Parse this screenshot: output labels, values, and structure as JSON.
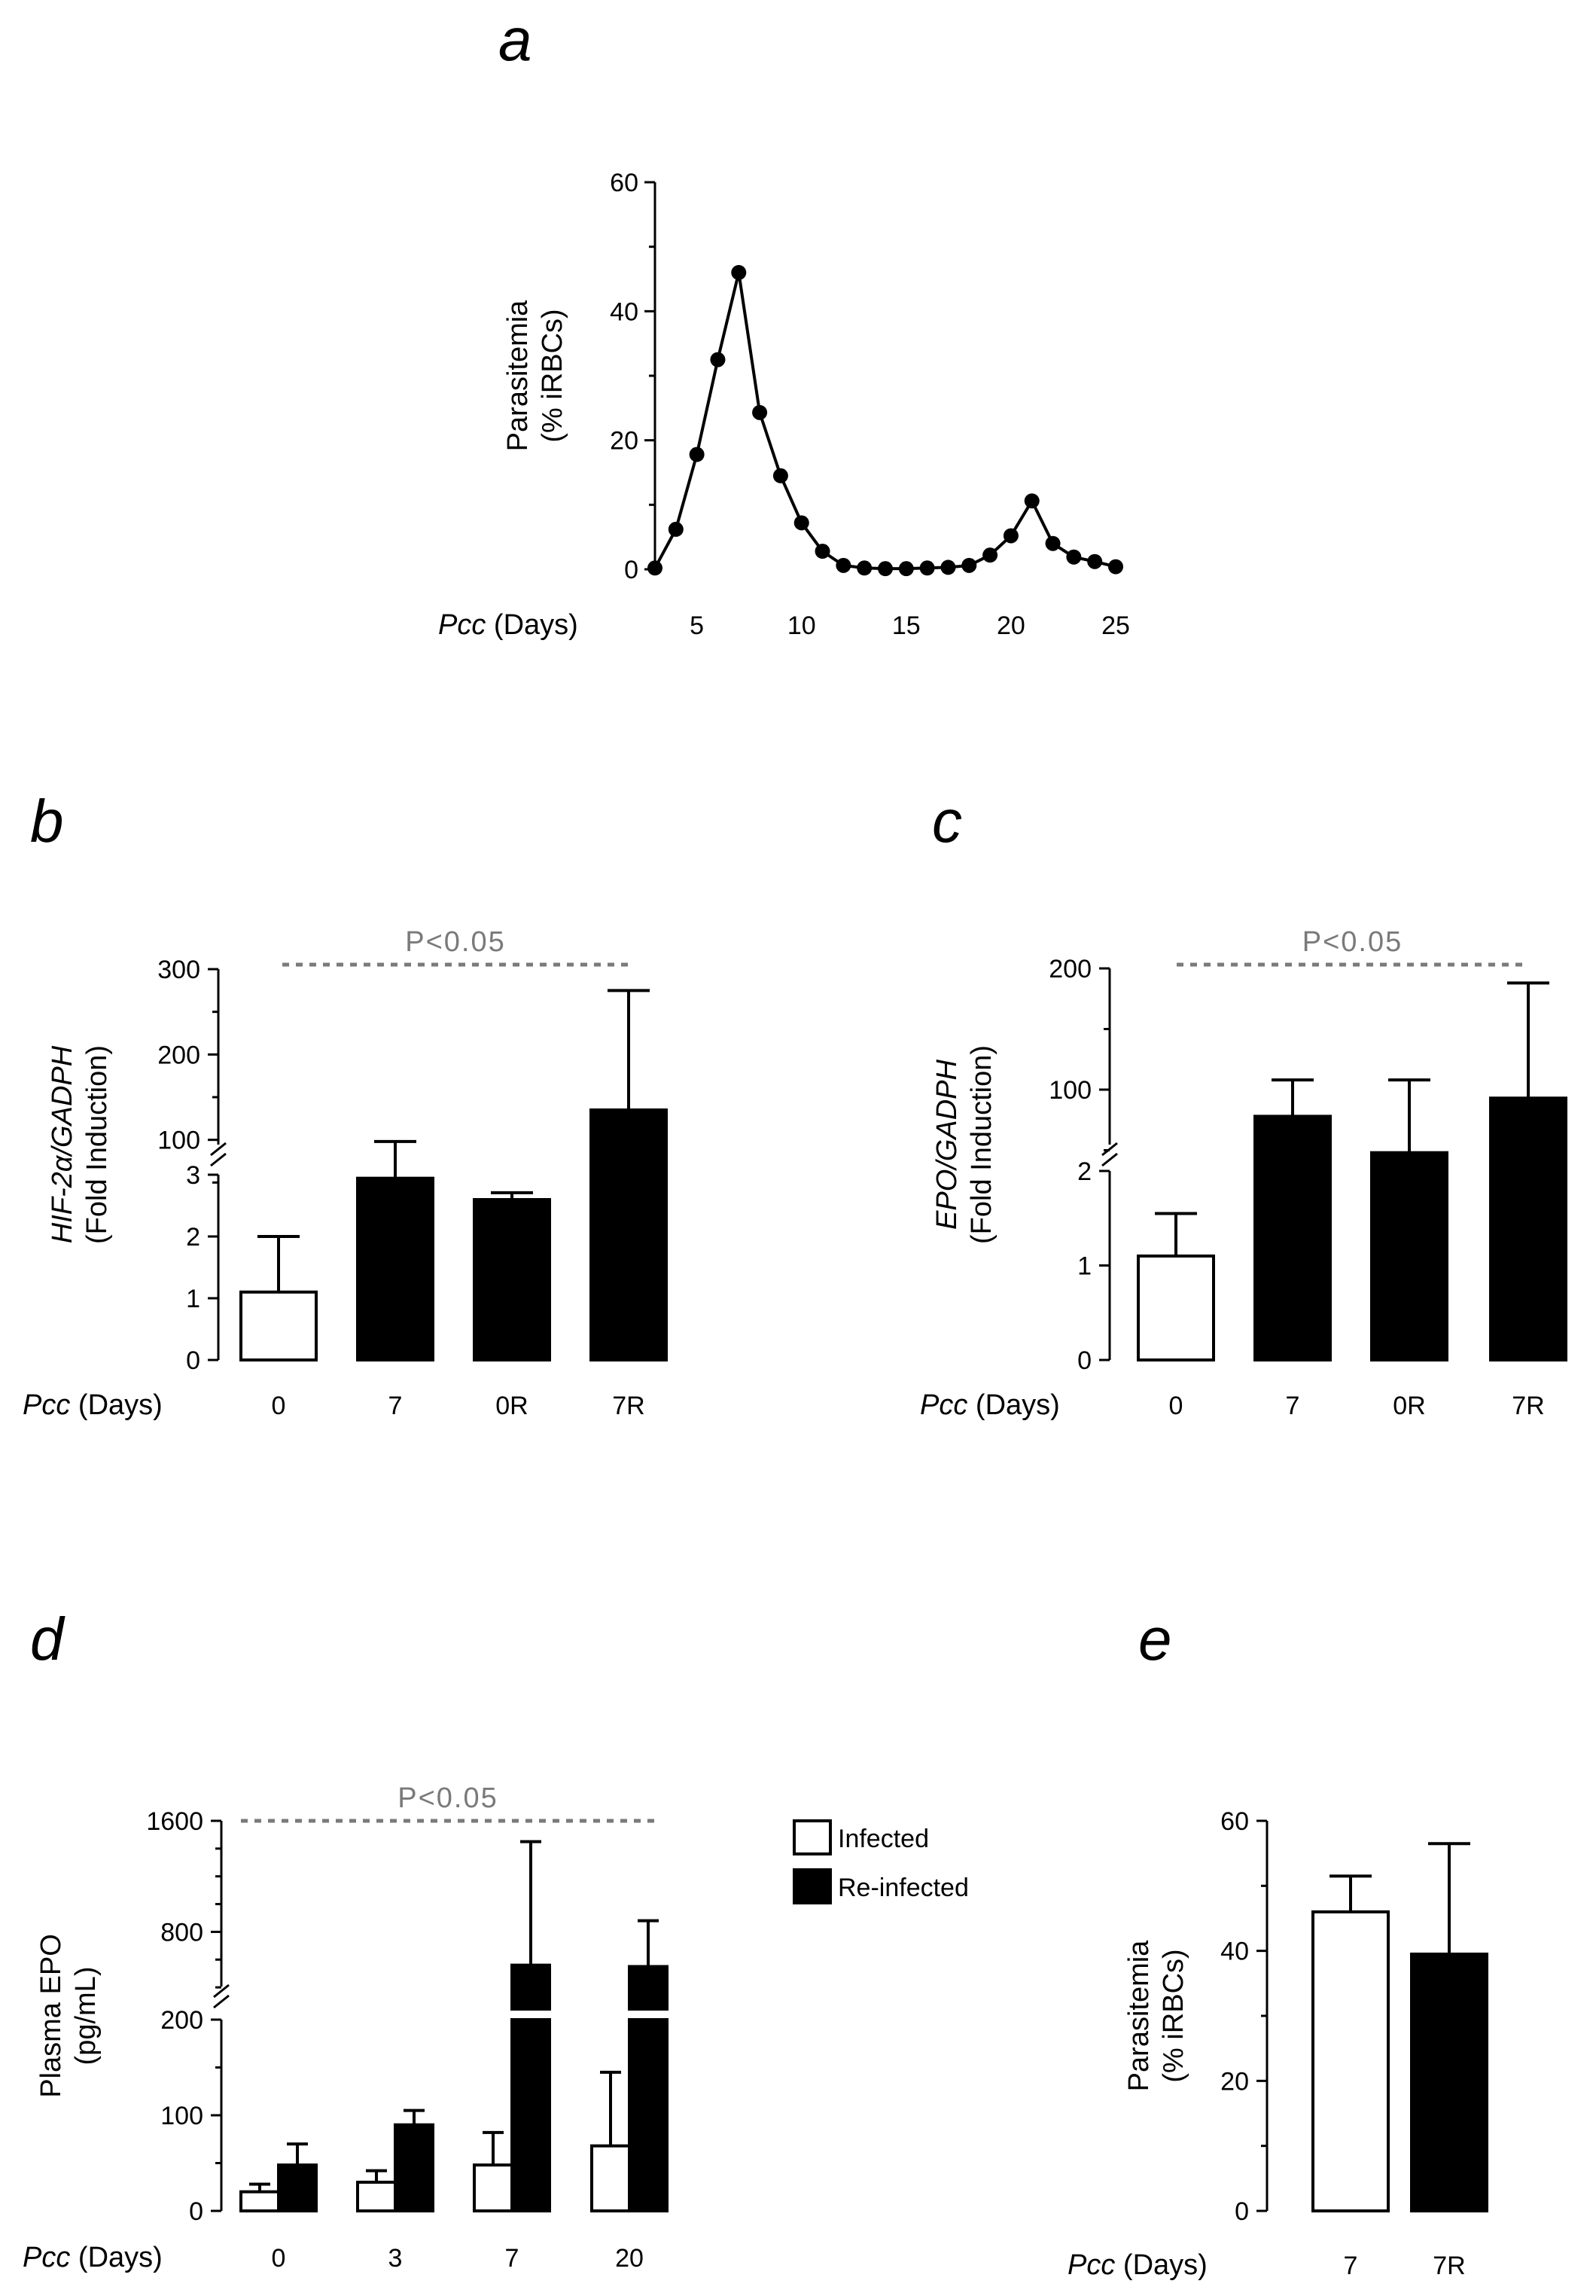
{
  "panels": {
    "a": {
      "letter": "a"
    },
    "b": {
      "letter": "b"
    },
    "c": {
      "letter": "c"
    },
    "d": {
      "letter": "d"
    },
    "e": {
      "letter": "e"
    }
  },
  "chart_data": [
    {
      "panel": "a",
      "type": "line",
      "ylabel_line1": "Parasitemia",
      "ylabel_line2": "(% iRBCs)",
      "xlabel_italic": "Pcc",
      "xlabel_rest": " (Days)",
      "xlim": [
        3,
        25
      ],
      "ylim": [
        0,
        60
      ],
      "yticks": [
        0,
        20,
        40,
        60
      ],
      "xticks": [
        5,
        10,
        15,
        20,
        25
      ],
      "x": [
        3,
        4,
        5,
        6,
        7,
        8,
        9,
        10,
        11,
        12,
        13,
        14,
        15,
        16,
        17,
        18,
        19,
        20,
        21,
        22,
        23,
        24,
        25
      ],
      "y": [
        0.2,
        6.2,
        17.8,
        32.5,
        46,
        24.3,
        14.5,
        7.2,
        2.8,
        0.6,
        0.2,
        0.1,
        0.1,
        0.2,
        0.3,
        0.6,
        2.2,
        5.2,
        10.6,
        4,
        1.9,
        1.2,
        0.4
      ]
    },
    {
      "panel": "b",
      "type": "bar",
      "ylabel_line1_italic": "HIF-2α/GADPH",
      "ylabel_line2": "(Fold Induction)",
      "xlabel_italic": "Pcc",
      "xlabel_rest": " (Days)",
      "categories": [
        "0",
        "7",
        "0R",
        "7R"
      ],
      "values": [
        1.1,
        55,
        30,
        135
      ],
      "errors": [
        2.0,
        98,
        38,
        275
      ],
      "fills": [
        "open",
        "filled",
        "filled",
        "filled"
      ],
      "y_axis_break": true,
      "ylim_lower": [
        0,
        3
      ],
      "ylim_upper": [
        0,
        300
      ],
      "yticks_lower": [
        0,
        1,
        2,
        3
      ],
      "yticks_upper": [
        100,
        200,
        300
      ],
      "significance": "P<0.05"
    },
    {
      "panel": "c",
      "type": "bar",
      "ylabel_line1_italic": "EPO/GADPH",
      "ylabel_line2": "(Fold Induction)",
      "xlabel_italic": "Pcc",
      "xlabel_rest": " (Days)",
      "categories": [
        "0",
        "7",
        "0R",
        "7R"
      ],
      "values": [
        1.1,
        78,
        48,
        93
      ],
      "errors": [
        1.55,
        108,
        108,
        188
      ],
      "fills": [
        "open",
        "filled",
        "filled",
        "filled"
      ],
      "y_axis_break": true,
      "ylim_lower": [
        0,
        2
      ],
      "ylim_upper": [
        0,
        200
      ],
      "yticks_lower": [
        0,
        1,
        2
      ],
      "yticks_upper": [
        100,
        200
      ],
      "significance": "P<0.05"
    },
    {
      "panel": "d",
      "type": "bar",
      "ylabel_line1": "Plasma EPO",
      "ylabel_line2": "(pg/mL)",
      "xlabel_italic": "Pcc",
      "xlabel_rest": " (Days)",
      "categories": [
        "0",
        "3",
        "7",
        "20"
      ],
      "series": [
        {
          "name": "Infected",
          "fill": "open",
          "values": [
            20,
            30,
            48,
            68
          ],
          "errors": [
            28,
            42,
            82,
            145
          ]
        },
        {
          "name": "Re-infected",
          "fill": "filled",
          "values": [
            48,
            90,
            560,
            550
          ],
          "errors": [
            70,
            105,
            1450,
            880
          ]
        }
      ],
      "y_axis_break": true,
      "ylim_lower": [
        0,
        200
      ],
      "ylim_upper": [
        200,
        1600
      ],
      "yticks_lower": [
        0,
        100,
        200
      ],
      "yticks_upper": [
        800,
        1600
      ],
      "significance": "P<0.05",
      "legend": "top-right"
    },
    {
      "panel": "e",
      "type": "bar",
      "ylabel_line1": "Parasitemia",
      "ylabel_line2": "(% iRBCs)",
      "xlabel_italic": "Pcc",
      "xlabel_rest": " (Days)",
      "categories": [
        "7",
        "7R"
      ],
      "values": [
        46,
        39.5
      ],
      "errors": [
        51.5,
        56.5
      ],
      "fills": [
        "open",
        "filled"
      ],
      "ylim": [
        0,
        60
      ],
      "yticks": [
        0,
        20,
        40,
        60
      ]
    }
  ]
}
